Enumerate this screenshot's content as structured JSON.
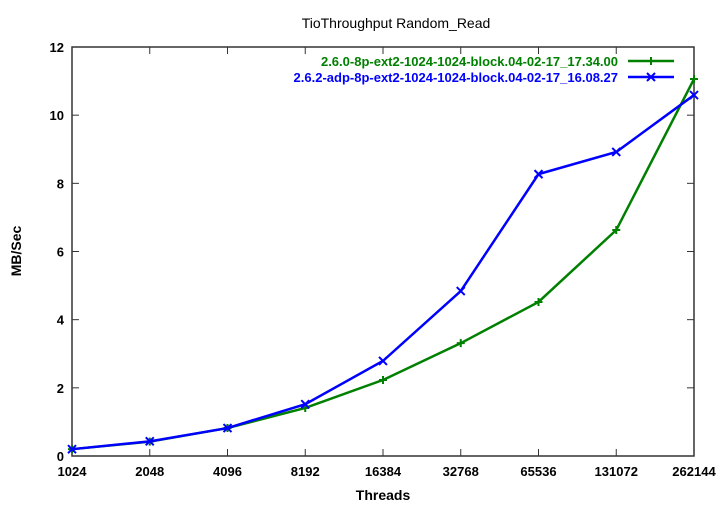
{
  "chart_data": {
    "type": "line",
    "title": "TioThroughput Random_Read",
    "xlabel": "Threads",
    "ylabel": "MB/Sec",
    "x": [
      1024,
      2048,
      4096,
      8192,
      16384,
      32768,
      65536,
      131072,
      262144
    ],
    "x_tick_labels": [
      "1024",
      "2048",
      "4096",
      "8192",
      "16384",
      "32768",
      "65536",
      "131072",
      "262144"
    ],
    "x_scale": "log2",
    "ylim": [
      0,
      12
    ],
    "y_ticks": [
      0,
      2,
      4,
      6,
      8,
      10,
      12
    ],
    "y_tick_labels": [
      "0",
      "2",
      "4",
      "6",
      "8",
      "10",
      "12"
    ],
    "grid": false,
    "legend_position": "top-right",
    "series": [
      {
        "name": "2.6.0-8p-ext2-1024-1024-block.04-02-17_17.34.00",
        "color": "#008000",
        "marker": "plus",
        "values": [
          0.2,
          0.42,
          0.82,
          1.41,
          2.23,
          3.31,
          4.52,
          6.63,
          11.06
        ]
      },
      {
        "name": "2.6.2-adp-8p-ext2-1024-1024-block.04-02-17_16.08.27",
        "color": "#0000ff",
        "marker": "cross",
        "values": [
          0.2,
          0.43,
          0.82,
          1.52,
          2.79,
          4.84,
          8.27,
          8.92,
          10.59
        ]
      }
    ]
  }
}
